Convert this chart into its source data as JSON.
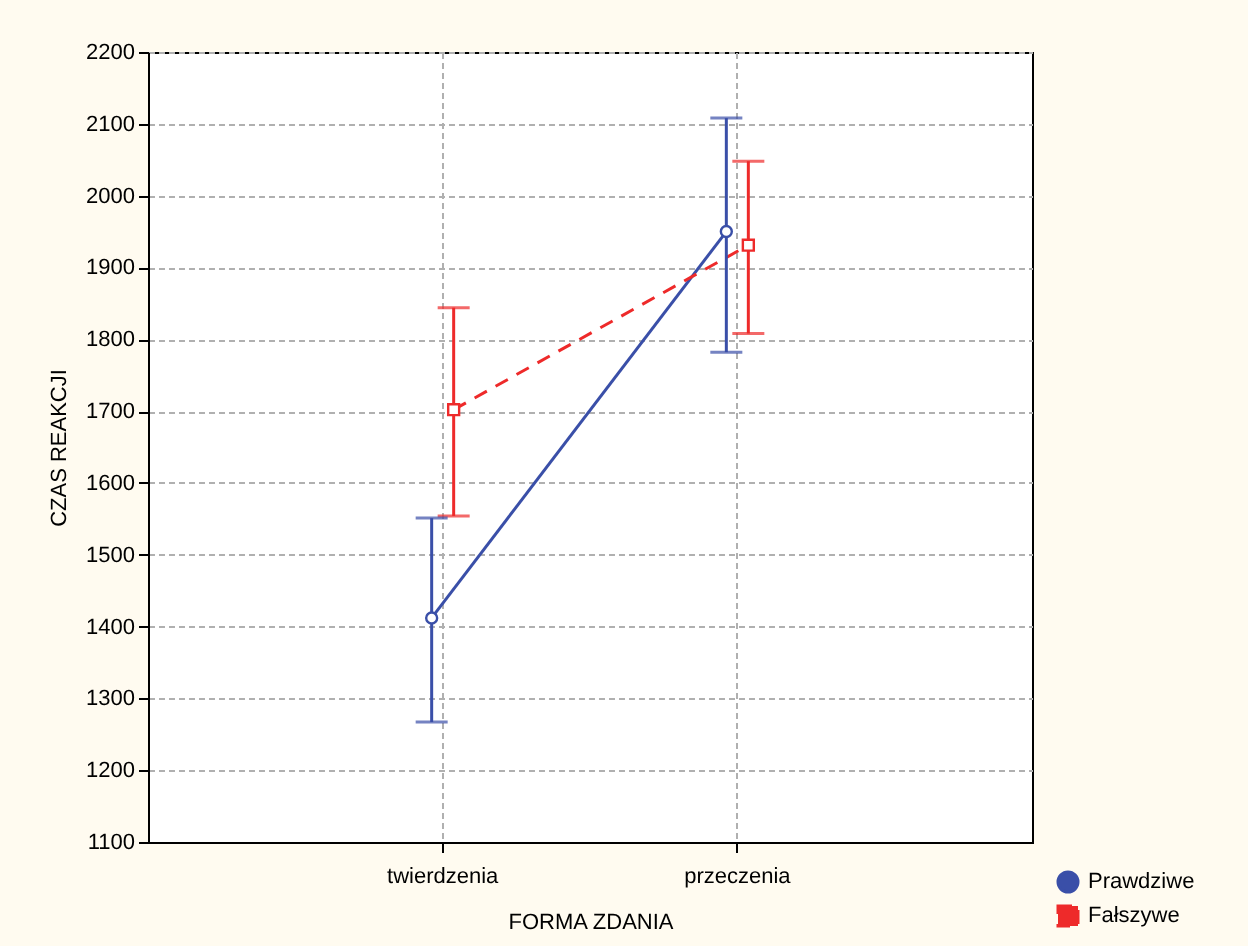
{
  "chart_data": {
    "type": "line",
    "xlabel": "FORMA ZDANIA",
    "ylabel": "CZAS REAKCJI",
    "categories": [
      "twierdzenia",
      "przeczenia"
    ],
    "series": [
      {
        "name": "Prawdziwe",
        "color": "#3a4fa8",
        "values": [
          1412,
          1950
        ],
        "errors": [
          [
            1267,
            1551
          ],
          [
            1782,
            2108
          ]
        ],
        "marker": "circle",
        "line_style": "solid"
      },
      {
        "name": "Fałszywe",
        "color": "#ee2a2a",
        "values": [
          1702,
          1931
        ],
        "errors": [
          [
            1554,
            1844
          ],
          [
            1808,
            2048
          ]
        ],
        "marker": "square",
        "line_style": "dashed"
      }
    ],
    "ylim": [
      1100,
      2200
    ],
    "yticks": [
      1100,
      1200,
      1300,
      1400,
      1500,
      1600,
      1700,
      1800,
      1900,
      2000,
      2100,
      2200
    ],
    "grid": true,
    "legend": "bottom right"
  }
}
